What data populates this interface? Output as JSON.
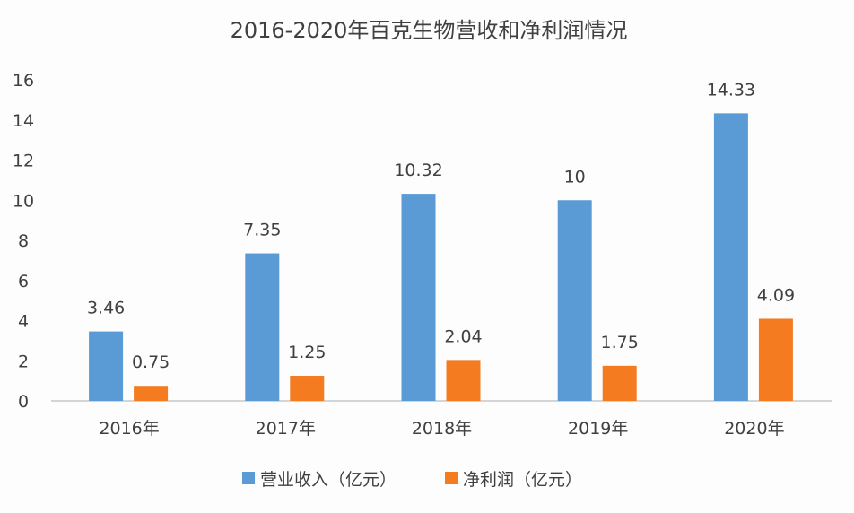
{
  "chart_data": {
    "type": "bar",
    "title": "2016-2020年百克生物营收和净利润情况",
    "categories": [
      "2016年",
      "2017年",
      "2018年",
      "2019年",
      "2020年"
    ],
    "series": [
      {
        "name": "营业收入（亿元）",
        "values": [
          3.46,
          7.35,
          10.32,
          10,
          14.33
        ],
        "labels": [
          "3.46",
          "7.35",
          "10.32",
          "10",
          "14.33"
        ],
        "color": "#5b9bd5"
      },
      {
        "name": "净利润（亿元）",
        "values": [
          0.75,
          1.25,
          2.04,
          1.75,
          4.09
        ],
        "labels": [
          "0.75",
          "1.25",
          "2.04",
          "1.75",
          "4.09"
        ],
        "color": "#f47b20"
      }
    ],
    "yticks": [
      "0",
      "2",
      "4",
      "6",
      "8",
      "10",
      "12",
      "14",
      "16"
    ],
    "ylim": [
      0,
      16
    ],
    "grid": false,
    "legend": "bottom",
    "xlabel": "",
    "ylabel": ""
  }
}
